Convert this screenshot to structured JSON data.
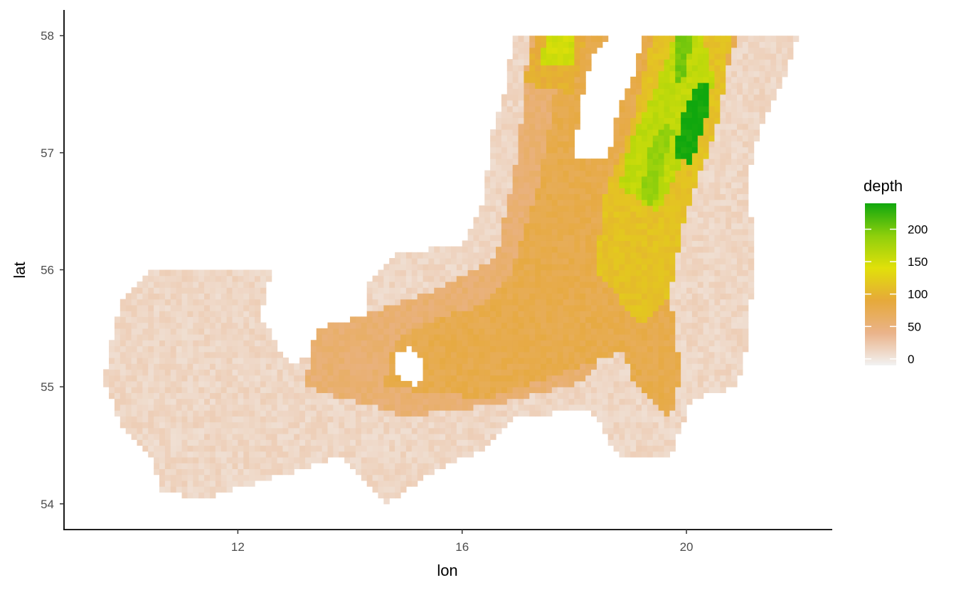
{
  "chart_data": {
    "type": "heatmap",
    "xlabel": "lon",
    "ylabel": "lat",
    "x_ticks": [
      12,
      16,
      20
    ],
    "y_ticks": [
      54,
      55,
      56,
      57,
      58
    ],
    "xlim": [
      8.9,
      22.6
    ],
    "ylim": [
      53.78,
      58.22
    ],
    "grid": false,
    "legend": {
      "title": "depth",
      "position": "right",
      "range": [
        -10,
        240
      ],
      "ticks": [
        0,
        50,
        100,
        150,
        200
      ],
      "colors": [
        "#f2f2f2",
        "#eab38a",
        "#e6a93a",
        "#e1e00a",
        "#8ecf0c",
        "#10a70e"
      ]
    },
    "cell_size_deg": [
      0.1,
      0.05
    ],
    "regions": [
      {
        "kind": "sea",
        "polygon": [
          [
            10.6,
            54.1
          ],
          [
            11.4,
            54.05
          ],
          [
            12.8,
            54.25
          ],
          [
            13.8,
            54.4
          ],
          [
            14.6,
            54.0
          ],
          [
            15.6,
            54.3
          ],
          [
            16.5,
            54.5
          ],
          [
            17.0,
            54.75
          ],
          [
            18.3,
            54.8
          ],
          [
            18.8,
            54.4
          ],
          [
            19.7,
            54.4
          ],
          [
            20.1,
            54.9
          ],
          [
            20.9,
            55.0
          ],
          [
            21.1,
            55.4
          ],
          [
            21.2,
            56.1
          ],
          [
            21.1,
            56.8
          ],
          [
            21.3,
            57.2
          ],
          [
            21.7,
            57.6
          ],
          [
            22.0,
            58.0
          ],
          [
            16.9,
            58.0
          ],
          [
            16.8,
            57.6
          ],
          [
            16.5,
            57.1
          ],
          [
            16.4,
            56.6
          ],
          [
            16.0,
            56.2
          ],
          [
            14.8,
            56.15
          ],
          [
            14.3,
            55.85
          ],
          [
            14.4,
            55.4
          ],
          [
            12.9,
            55.2
          ],
          [
            12.4,
            55.6
          ],
          [
            12.6,
            56.0
          ],
          [
            10.5,
            56.0
          ],
          [
            9.9,
            55.7
          ],
          [
            9.6,
            55.05
          ],
          [
            10.0,
            54.6
          ],
          [
            10.5,
            54.4
          ]
        ],
        "value": 12
      },
      {
        "kind": "sea",
        "polygon": [
          [
            13.2,
            55.0
          ],
          [
            15.0,
            54.75
          ],
          [
            16.6,
            54.85
          ],
          [
            18.2,
            55.05
          ],
          [
            18.8,
            55.5
          ],
          [
            19.3,
            56.2
          ],
          [
            19.8,
            56.9
          ],
          [
            20.2,
            57.5
          ],
          [
            20.6,
            58.0
          ],
          [
            17.2,
            58.0
          ],
          [
            17.0,
            57.0
          ],
          [
            16.6,
            56.1
          ],
          [
            15.4,
            55.8
          ],
          [
            14.2,
            55.6
          ],
          [
            13.4,
            55.5
          ]
        ],
        "value": 55
      },
      {
        "kind": "sea",
        "polygon": [
          [
            14.6,
            55.0
          ],
          [
            16.5,
            54.9
          ],
          [
            17.6,
            55.1
          ],
          [
            18.9,
            55.3
          ],
          [
            19.0,
            55.1
          ],
          [
            19.7,
            54.7
          ],
          [
            19.9,
            55.1
          ],
          [
            19.8,
            55.5
          ],
          [
            19.6,
            56.0
          ],
          [
            20.0,
            56.6
          ],
          [
            20.5,
            57.3
          ],
          [
            20.9,
            58.0
          ],
          [
            17.8,
            58.0
          ],
          [
            17.6,
            57.3
          ],
          [
            17.3,
            56.6
          ],
          [
            16.9,
            56.0
          ],
          [
            16.4,
            55.7
          ],
          [
            15.6,
            55.6
          ],
          [
            14.8,
            55.4
          ]
        ],
        "value": 78
      },
      {
        "kind": "sea",
        "polygon": [
          [
            18.4,
            56.0
          ],
          [
            19.2,
            55.5
          ],
          [
            19.7,
            55.8
          ],
          [
            20.0,
            56.5
          ],
          [
            20.6,
            57.3
          ],
          [
            20.8,
            58.0
          ],
          [
            19.4,
            58.0
          ],
          [
            19.0,
            57.2
          ],
          [
            18.5,
            56.6
          ]
        ],
        "value": 112
      },
      {
        "kind": "sea",
        "polygon": [
          [
            18.8,
            56.7
          ],
          [
            19.5,
            56.5
          ],
          [
            20.0,
            57.0
          ],
          [
            20.5,
            57.6
          ],
          [
            20.3,
            58.0
          ],
          [
            19.8,
            58.0
          ],
          [
            19.4,
            57.5
          ],
          [
            19.0,
            57.1
          ]
        ],
        "value": 160
      },
      {
        "kind": "sea",
        "polygon": [
          [
            17.1,
            57.6
          ],
          [
            18.0,
            57.5
          ],
          [
            18.2,
            58.0
          ],
          [
            17.3,
            58.0
          ]
        ],
        "value": 95
      },
      {
        "kind": "sea",
        "polygon": [
          [
            17.4,
            57.75
          ],
          [
            17.95,
            57.75
          ],
          [
            18.0,
            58.0
          ],
          [
            17.5,
            58.0
          ]
        ],
        "value": 150
      },
      {
        "kind": "hole",
        "polygon": [
          [
            18.0,
            56.95
          ],
          [
            18.6,
            56.95
          ],
          [
            18.8,
            57.4
          ],
          [
            19.1,
            57.7
          ],
          [
            19.2,
            58.0
          ],
          [
            18.7,
            58.05
          ],
          [
            18.3,
            57.8
          ],
          [
            18.1,
            57.4
          ]
        ],
        "value": null
      },
      {
        "kind": "hole",
        "polygon": [
          [
            14.8,
            55.1
          ],
          [
            15.2,
            55.0
          ],
          [
            15.35,
            55.2
          ],
          [
            15.1,
            55.35
          ],
          [
            14.85,
            55.3
          ]
        ],
        "value": null
      },
      {
        "kind": "sea",
        "polygon": [
          [
            19.2,
            56.6
          ],
          [
            19.4,
            56.5
          ],
          [
            19.6,
            56.9
          ],
          [
            19.8,
            57.2
          ],
          [
            19.6,
            57.25
          ],
          [
            19.3,
            57.0
          ]
        ],
        "value": 185
      },
      {
        "kind": "sea",
        "polygon": [
          [
            19.8,
            56.95
          ],
          [
            20.1,
            56.9
          ],
          [
            20.4,
            57.4
          ],
          [
            20.45,
            57.6
          ],
          [
            20.2,
            57.6
          ],
          [
            19.9,
            57.3
          ]
        ],
        "value": 240
      },
      {
        "kind": "sea",
        "polygon": [
          [
            19.8,
            57.6
          ],
          [
            20.0,
            57.65
          ],
          [
            20.1,
            58.0
          ],
          [
            19.85,
            58.0
          ]
        ],
        "value": 200
      }
    ]
  }
}
